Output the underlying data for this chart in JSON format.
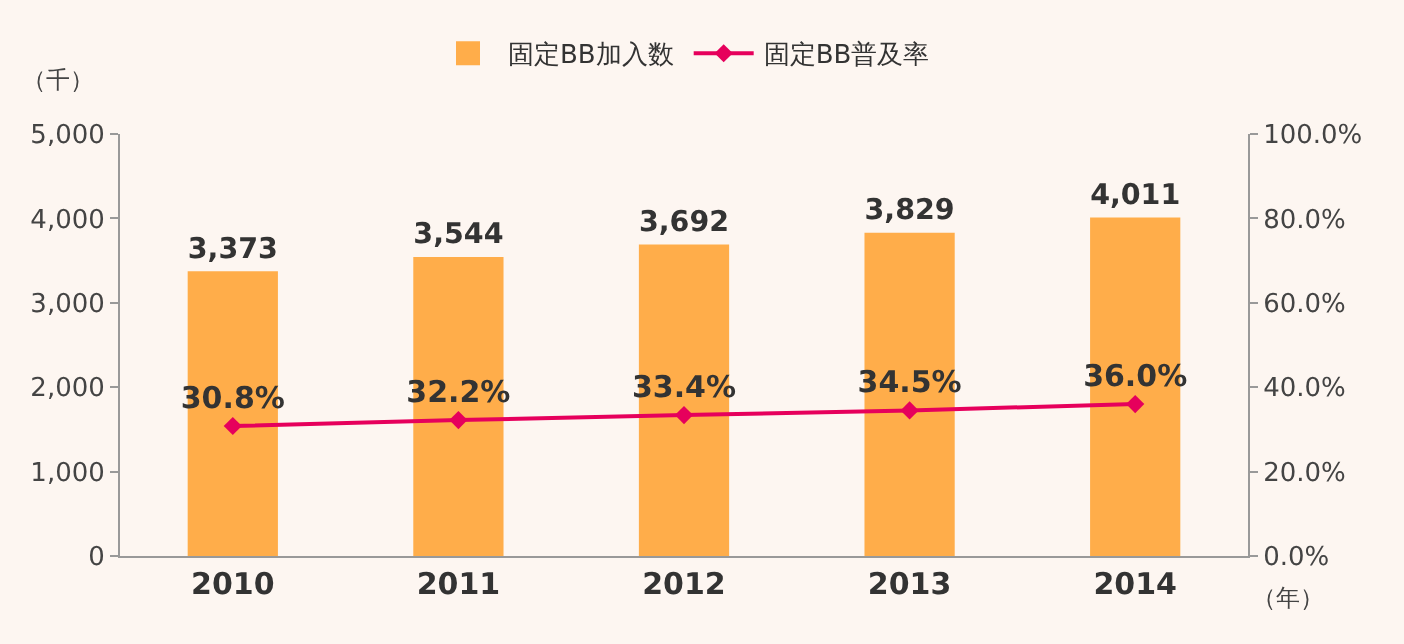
{
  "chart_data": {
    "type": "bar",
    "ylabel": "（千）",
    "xlabel": "（年）",
    "categories": [
      "2010",
      "2011",
      "2012",
      "2013",
      "2014"
    ],
    "series": [
      {
        "name": "固定BB加入数",
        "color": "#ffad4a",
        "values": [
          3373,
          3544,
          3692,
          3829,
          4011
        ],
        "value_labels": [
          "3,373",
          "3,544",
          "3,692",
          "3,829",
          "4,011"
        ]
      },
      {
        "name": "固定BB普及率",
        "type": "line",
        "axis": "y2",
        "color": "#e6005c",
        "values": [
          30.8,
          32.2,
          33.4,
          34.5,
          36.0
        ],
        "value_labels": [
          "30.8%",
          "32.2%",
          "33.4%",
          "34.5%",
          "36.0%"
        ]
      }
    ],
    "ylim": [
      0,
      5000
    ],
    "yticks": [
      {
        "value": 0,
        "label": "0"
      },
      {
        "value": 1000,
        "label": "1,000"
      },
      {
        "value": 2000,
        "label": "2,000"
      },
      {
        "value": 3000,
        "label": "3,000"
      },
      {
        "value": 4000,
        "label": "4,000"
      },
      {
        "value": 5000,
        "label": "5,000"
      }
    ],
    "y2lim": [
      0,
      100
    ],
    "y2ticks": [
      {
        "value": 0,
        "label": "0.0%"
      },
      {
        "value": 20,
        "label": "20.0%"
      },
      {
        "value": 40,
        "label": "40.0%"
      },
      {
        "value": 60,
        "label": "60.0%"
      },
      {
        "value": 80,
        "label": "80.0%"
      },
      {
        "value": 100,
        "label": "100.0%"
      }
    ],
    "grid": false,
    "legend": "top",
    "marker": "diamond",
    "line_style": "solid"
  }
}
